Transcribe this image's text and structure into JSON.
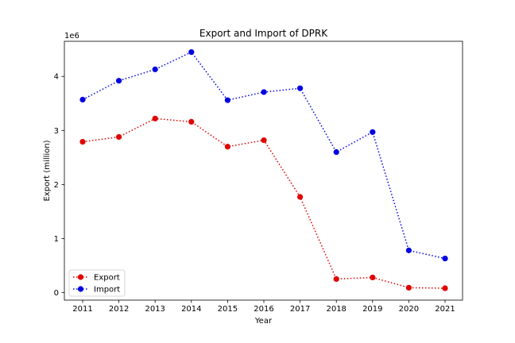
{
  "chart_data": {
    "type": "line",
    "title": "Export and Import of DPRK",
    "xlabel": "Year",
    "ylabel": "Export (million)",
    "y_offset_label": "1e6",
    "categories": [
      "2011",
      "2012",
      "2013",
      "2014",
      "2015",
      "2016",
      "2017",
      "2018",
      "2019",
      "2020",
      "2021"
    ],
    "y_ticks": [
      "0",
      "1",
      "2",
      "3",
      "4"
    ],
    "y_tick_values": [
      0,
      1000000,
      2000000,
      3000000,
      4000000
    ],
    "ylim": [
      -140000,
      4650000
    ],
    "grid": false,
    "legend_position": "lower-left",
    "series": [
      {
        "name": "Export",
        "color": "#e00000",
        "marker": "circle",
        "linestyle": "dotted",
        "values": [
          2790000,
          2880000,
          3220000,
          3160000,
          2700000,
          2820000,
          1770000,
          250000,
          280000,
          90000,
          80000
        ]
      },
      {
        "name": "Import",
        "color": "#0000e0",
        "marker": "circle",
        "linestyle": "dotted",
        "values": [
          3570000,
          3920000,
          4130000,
          4450000,
          3560000,
          3710000,
          3780000,
          2600000,
          2970000,
          780000,
          630000
        ]
      }
    ]
  }
}
